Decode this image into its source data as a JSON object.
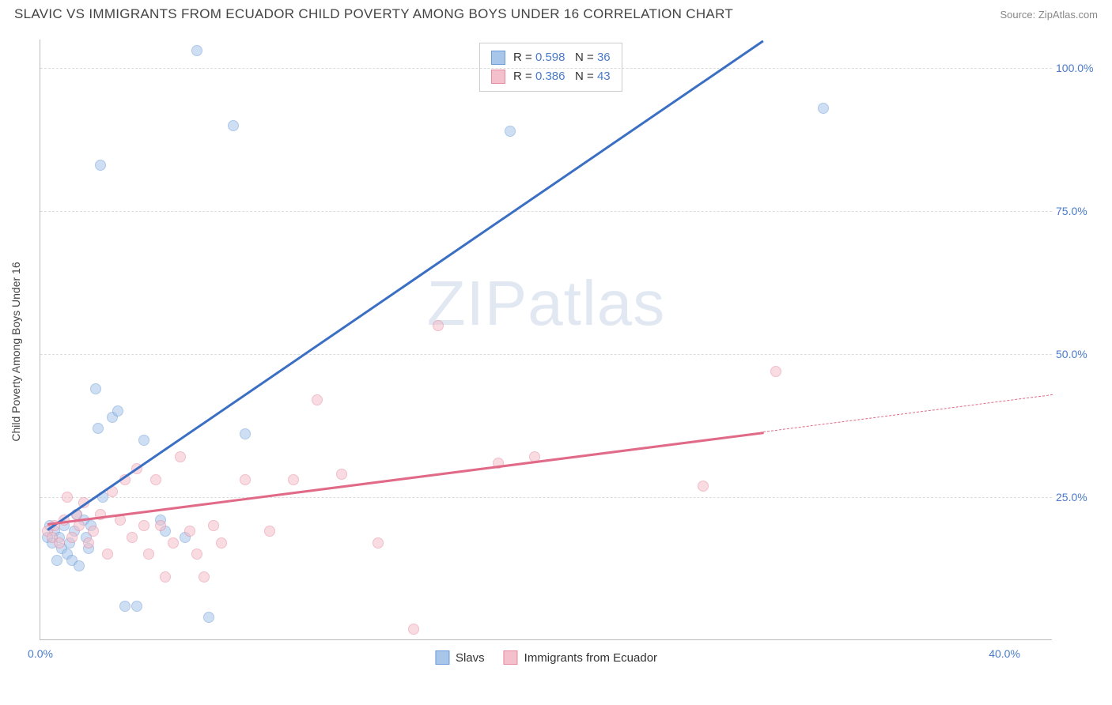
{
  "title": "SLAVIC VS IMMIGRANTS FROM ECUADOR CHILD POVERTY AMONG BOYS UNDER 16 CORRELATION CHART",
  "source": "Source: ZipAtlas.com",
  "ylabel": "Child Poverty Among Boys Under 16",
  "watermark_a": "ZIP",
  "watermark_b": "atlas",
  "chart": {
    "type": "scatter",
    "background_color": "#ffffff",
    "grid_color": "#dddddd",
    "axis_color": "#bbbbbb",
    "tick_color": "#4a7bc8",
    "label_color": "#444444",
    "xlim": [
      0,
      42
    ],
    "ylim": [
      0,
      105
    ],
    "yticks": [
      25,
      50,
      75,
      100
    ],
    "ytick_labels": [
      "25.0%",
      "50.0%",
      "75.0%",
      "100.0%"
    ],
    "xticks": [
      0,
      40
    ],
    "xtick_labels": [
      "0.0%",
      "40.0%"
    ],
    "marker_radius": 7,
    "marker_opacity": 0.55,
    "title_fontsize": 17,
    "tick_fontsize": 14,
    "label_fontsize": 14
  },
  "series": [
    {
      "name": "Slavs",
      "label": "Slavs",
      "color_fill": "#a8c5ea",
      "color_stroke": "#6b9bd8",
      "trend_color": "#3a6fc4",
      "R": "0.598",
      "N": "36",
      "trend": {
        "x1": 0.3,
        "y1": 19.5,
        "x2": 30.0,
        "y2": 105.0
      },
      "points": [
        [
          0.3,
          18
        ],
        [
          0.4,
          20
        ],
        [
          0.5,
          17
        ],
        [
          0.6,
          19
        ],
        [
          0.7,
          14
        ],
        [
          0.8,
          18
        ],
        [
          0.9,
          16
        ],
        [
          1.0,
          20
        ],
        [
          1.1,
          15
        ],
        [
          1.2,
          17
        ],
        [
          1.3,
          14
        ],
        [
          1.4,
          19
        ],
        [
          1.5,
          22
        ],
        [
          1.6,
          13
        ],
        [
          1.8,
          21
        ],
        [
          1.9,
          18
        ],
        [
          2.0,
          16
        ],
        [
          2.1,
          20
        ],
        [
          2.3,
          44
        ],
        [
          2.4,
          37
        ],
        [
          2.6,
          25
        ],
        [
          3.0,
          39
        ],
        [
          3.2,
          40
        ],
        [
          3.5,
          6
        ],
        [
          4.0,
          6
        ],
        [
          4.3,
          35
        ],
        [
          5.0,
          21
        ],
        [
          5.2,
          19
        ],
        [
          6.0,
          18
        ],
        [
          6.5,
          103
        ],
        [
          7.0,
          4
        ],
        [
          8.0,
          90
        ],
        [
          8.5,
          36
        ],
        [
          2.5,
          83
        ],
        [
          19.5,
          89
        ],
        [
          32.5,
          93
        ]
      ]
    },
    {
      "name": "Immigrants from Ecuador",
      "label": "Immigrants from Ecuador",
      "color_fill": "#f3c0cb",
      "color_stroke": "#e889a0",
      "trend_color": "#e06a87",
      "R": "0.386",
      "N": "43",
      "trend": {
        "x1": 0.3,
        "y1": 20.5,
        "x2": 30.0,
        "y2": 36.5
      },
      "trend_dash": {
        "x1": 30.0,
        "y1": 36.5,
        "x2": 42.0,
        "y2": 43.0
      },
      "points": [
        [
          0.3,
          19
        ],
        [
          0.5,
          18
        ],
        [
          0.6,
          20
        ],
        [
          0.8,
          17
        ],
        [
          1.0,
          21
        ],
        [
          1.1,
          25
        ],
        [
          1.3,
          18
        ],
        [
          1.5,
          22
        ],
        [
          1.6,
          20
        ],
        [
          1.8,
          24
        ],
        [
          2.0,
          17
        ],
        [
          2.2,
          19
        ],
        [
          2.5,
          22
        ],
        [
          2.8,
          15
        ],
        [
          3.0,
          26
        ],
        [
          3.3,
          21
        ],
        [
          3.5,
          28
        ],
        [
          3.8,
          18
        ],
        [
          4.0,
          30
        ],
        [
          4.3,
          20
        ],
        [
          4.5,
          15
        ],
        [
          4.8,
          28
        ],
        [
          5.0,
          20
        ],
        [
          5.2,
          11
        ],
        [
          5.5,
          17
        ],
        [
          5.8,
          32
        ],
        [
          6.2,
          19
        ],
        [
          6.5,
          15
        ],
        [
          6.8,
          11
        ],
        [
          7.2,
          20
        ],
        [
          7.5,
          17
        ],
        [
          8.5,
          28
        ],
        [
          9.5,
          19
        ],
        [
          10.5,
          28
        ],
        [
          11.5,
          42
        ],
        [
          12.5,
          29
        ],
        [
          14.0,
          17
        ],
        [
          15.5,
          2
        ],
        [
          16.5,
          55
        ],
        [
          19.0,
          31
        ],
        [
          20.5,
          32
        ],
        [
          27.5,
          27
        ],
        [
          30.5,
          47
        ]
      ]
    }
  ],
  "stats_legend": {
    "R_label": "R =",
    "N_label": "N ="
  },
  "bottom_legend": {
    "items": [
      "Slavs",
      "Immigrants from Ecuador"
    ]
  }
}
